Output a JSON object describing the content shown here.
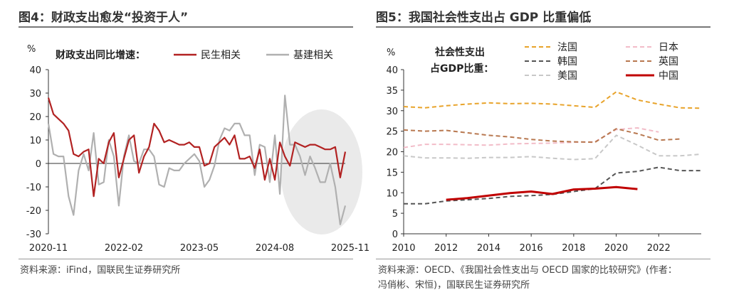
{
  "left": {
    "title": "图4：财政支出愈发“投资于人”",
    "source": "资料来源：iFind，国联民生证券研究所",
    "chart_data": {
      "type": "line",
      "unit": "%",
      "legend_title": "财政支出同比增速：",
      "legend_placement": "top",
      "ylim": [
        -30,
        40
      ],
      "yticks": [
        -30,
        -20,
        -10,
        0,
        10,
        20,
        30,
        40
      ],
      "x_tick_labels": [
        "2020-11",
        "2022-02",
        "2023-05",
        "2024-08",
        "2025-11"
      ],
      "x_tick_index": [
        0,
        15,
        30,
        45,
        60
      ],
      "grid": false,
      "highlight_region": "2024-12 to 2025-11",
      "series": [
        {
          "name": "民生相关",
          "color": "#b22222",
          "values": [
            28,
            21,
            19,
            17,
            14,
            4,
            3,
            5,
            6,
            -14,
            2,
            0,
            9,
            13,
            -6,
            2,
            10,
            12,
            -4,
            3,
            7,
            17,
            14,
            9,
            10,
            9,
            8,
            8,
            9,
            7,
            7,
            -1,
            0,
            7,
            9,
            11,
            8,
            12,
            2,
            2,
            3,
            -2,
            6,
            -7,
            2,
            -7,
            9,
            3,
            -1,
            9,
            8,
            7,
            8,
            8,
            7,
            6,
            6,
            7,
            -6,
            5
          ]
        },
        {
          "name": "基建相关",
          "color": "#b0b0b0",
          "values": [
            17,
            4,
            3,
            3,
            -14,
            -22,
            -3,
            4,
            -3,
            13,
            -9,
            -8,
            10,
            3,
            -18,
            3,
            12,
            1,
            0,
            6,
            6,
            3,
            -9,
            -10,
            -2,
            -3,
            -3,
            0,
            2,
            4,
            1,
            -10,
            -7,
            -1,
            10,
            15,
            14,
            17,
            17,
            12,
            12,
            -5,
            8,
            7,
            -8,
            12,
            -13,
            29,
            8,
            8,
            3,
            -5,
            3,
            -2,
            -8,
            -8,
            0,
            -10,
            -26,
            -18
          ]
        }
      ]
    }
  },
  "right": {
    "title": "图5：我国社会性支出占 GDP 比重偏低",
    "source_line1": "资料来源：OECD、《我国社会性支出与 OECD 国家的比较研究》(作者：",
    "source_line2": "冯俏彬、宋恒)，国联民生证券研究所",
    "chart_data": {
      "type": "line",
      "unit": "%",
      "legend_title_line1": "社会性支出",
      "legend_title_line2": "占GDP比重：",
      "legend_placement": "top",
      "ylim": [
        0,
        40
      ],
      "yticks": [
        0,
        5,
        10,
        15,
        20,
        25,
        30,
        35,
        40
      ],
      "xlim": [
        2010,
        2024
      ],
      "xticks": [
        2010,
        2012,
        2014,
        2016,
        2018,
        2020,
        2022
      ],
      "grid": false,
      "series": [
        {
          "name": "法国",
          "color": "#e8a32a",
          "dash": "dashed",
          "x": [
            2010,
            2011,
            2012,
            2013,
            2014,
            2015,
            2016,
            2017,
            2018,
            2019,
            2020,
            2021,
            2022,
            2023,
            2024
          ],
          "values": [
            31.0,
            30.7,
            31.2,
            31.6,
            31.9,
            31.7,
            31.8,
            31.6,
            31.2,
            30.8,
            34.6,
            32.6,
            31.6,
            30.7,
            30.6
          ]
        },
        {
          "name": "日本",
          "color": "#f2bcc8",
          "dash": "dashed",
          "x": [
            2010,
            2011,
            2012,
            2013,
            2014,
            2015,
            2016,
            2017,
            2018,
            2019,
            2020,
            2021,
            2022
          ],
          "values": [
            21.0,
            21.8,
            21.8,
            21.7,
            21.6,
            21.9,
            22.0,
            22.1,
            22.3,
            22.4,
            25.4,
            25.8,
            24.8
          ]
        },
        {
          "name": "韩国",
          "color": "#555555",
          "dash": "dashed",
          "x": [
            2010,
            2011,
            2012,
            2013,
            2014,
            2015,
            2016,
            2017,
            2018,
            2019,
            2020,
            2021,
            2022,
            2023,
            2024
          ],
          "values": [
            7.3,
            7.3,
            8.0,
            8.3,
            8.6,
            9.1,
            9.3,
            9.6,
            10.3,
            11.0,
            14.8,
            15.2,
            16.2,
            15.4,
            15.4
          ]
        },
        {
          "name": "英国",
          "color": "#b87850",
          "dash": "dashed",
          "x": [
            2010,
            2011,
            2012,
            2013,
            2014,
            2015,
            2016,
            2017,
            2018,
            2019,
            2020,
            2021,
            2022,
            2023
          ],
          "values": [
            25.3,
            25.0,
            25.2,
            24.6,
            24.0,
            23.6,
            23.0,
            22.6,
            22.4,
            22.3,
            25.6,
            24.4,
            22.8,
            23.1
          ]
        },
        {
          "name": "美国",
          "color": "#c8c8c8",
          "dash": "dashed",
          "x": [
            2010,
            2011,
            2012,
            2013,
            2014,
            2015,
            2016,
            2017,
            2018,
            2019,
            2020,
            2021,
            2022,
            2023,
            2024
          ],
          "values": [
            19.0,
            18.5,
            18.5,
            18.4,
            18.6,
            18.6,
            18.8,
            18.4,
            18.1,
            18.3,
            24.0,
            21.6,
            19.0,
            19.0,
            19.4
          ]
        },
        {
          "name": "中国",
          "color": "#c00000",
          "dash": "solid",
          "x": [
            2012,
            2013,
            2014,
            2015,
            2016,
            2017,
            2018,
            2019,
            2020,
            2021
          ],
          "values": [
            8.3,
            8.7,
            9.3,
            9.9,
            10.3,
            9.7,
            10.8,
            11.0,
            11.4,
            10.9
          ]
        }
      ]
    }
  }
}
